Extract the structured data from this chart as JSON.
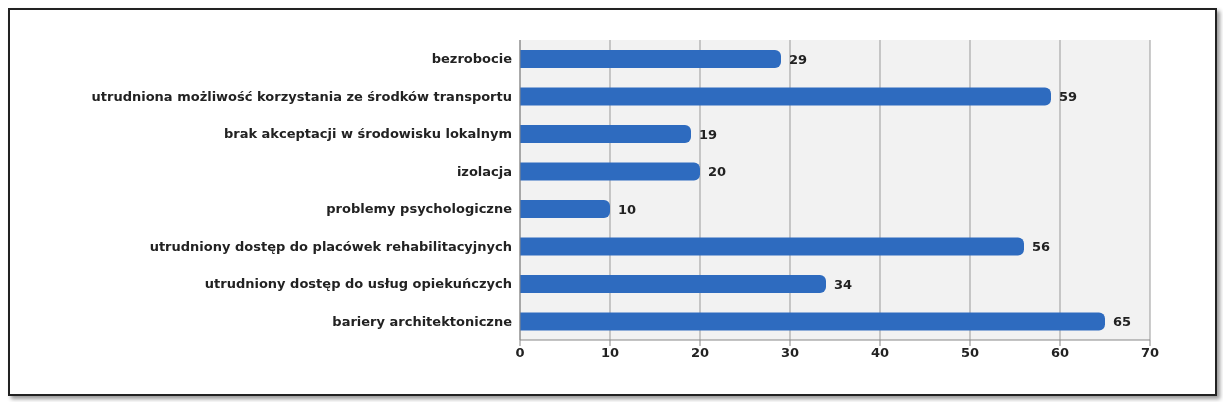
{
  "chart_data": {
    "type": "bar",
    "orientation": "horizontal",
    "categories": [
      "bezrobocie",
      "utrudniona możliwość korzystania ze środków transportu",
      "brak akceptacji w środowisku lokalnym",
      "izolacja",
      "problemy psychologiczne",
      "utrudniony dostęp do placówek rehabilitacyjnych",
      "utrudniony dostęp do usług opiekuńczych",
      "bariery architektoniczne"
    ],
    "values": [
      29,
      59,
      19,
      20,
      10,
      56,
      34,
      65
    ],
    "color": "#2e6bbf",
    "xlim": [
      0,
      70
    ],
    "xticks": [
      0,
      10,
      20,
      30,
      40,
      50,
      60,
      70
    ],
    "grid": "x",
    "data_labels": true
  }
}
